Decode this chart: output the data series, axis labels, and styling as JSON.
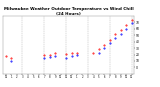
{
  "title": "Milwaukee Weather Outdoor Temperature vs Wind Chill (24 Hours)",
  "title_fontsize": 3.0,
  "background_color": "#ffffff",
  "grid_color": "#aaaaaa",
  "temp_color": "#ff0000",
  "windchill_color": "#0000ff",
  "marker_size": 0.9,
  "ylim": [
    -10,
    80
  ],
  "xlim": [
    -0.5,
    23.5
  ],
  "ytick_values": [
    0,
    10,
    20,
    30,
    40,
    50,
    60,
    70
  ],
  "ytick_labels": [
    "0",
    "10",
    "20",
    "30",
    "40",
    "50",
    "60",
    "70"
  ],
  "vgrid_positions": [
    3,
    7,
    11,
    15,
    19,
    23
  ],
  "xtick_positions": [
    0,
    1,
    2,
    3,
    4,
    5,
    6,
    7,
    8,
    9,
    10,
    11,
    12,
    13,
    14,
    15,
    16,
    17,
    18,
    19,
    20,
    21,
    22,
    23
  ],
  "xtick_labels": [
    "12",
    "1",
    "2",
    "3",
    "4",
    "5",
    "6",
    "7",
    "8",
    "9",
    "10",
    "11",
    "12",
    "1",
    "2",
    "3",
    "4",
    "5",
    "6",
    "7",
    "8",
    "9",
    "10",
    "11"
  ],
  "temp": [
    18,
    15,
    null,
    null,
    null,
    null,
    null,
    20,
    19,
    22,
    null,
    21,
    22,
    23,
    null,
    null,
    22,
    28,
    35,
    43,
    51,
    58,
    65,
    73
  ],
  "windchill": [
    null,
    10,
    null,
    null,
    null,
    null,
    null,
    14,
    16,
    18,
    null,
    15,
    17,
    20,
    null,
    null,
    null,
    22,
    30,
    38,
    46,
    52,
    60,
    68
  ]
}
